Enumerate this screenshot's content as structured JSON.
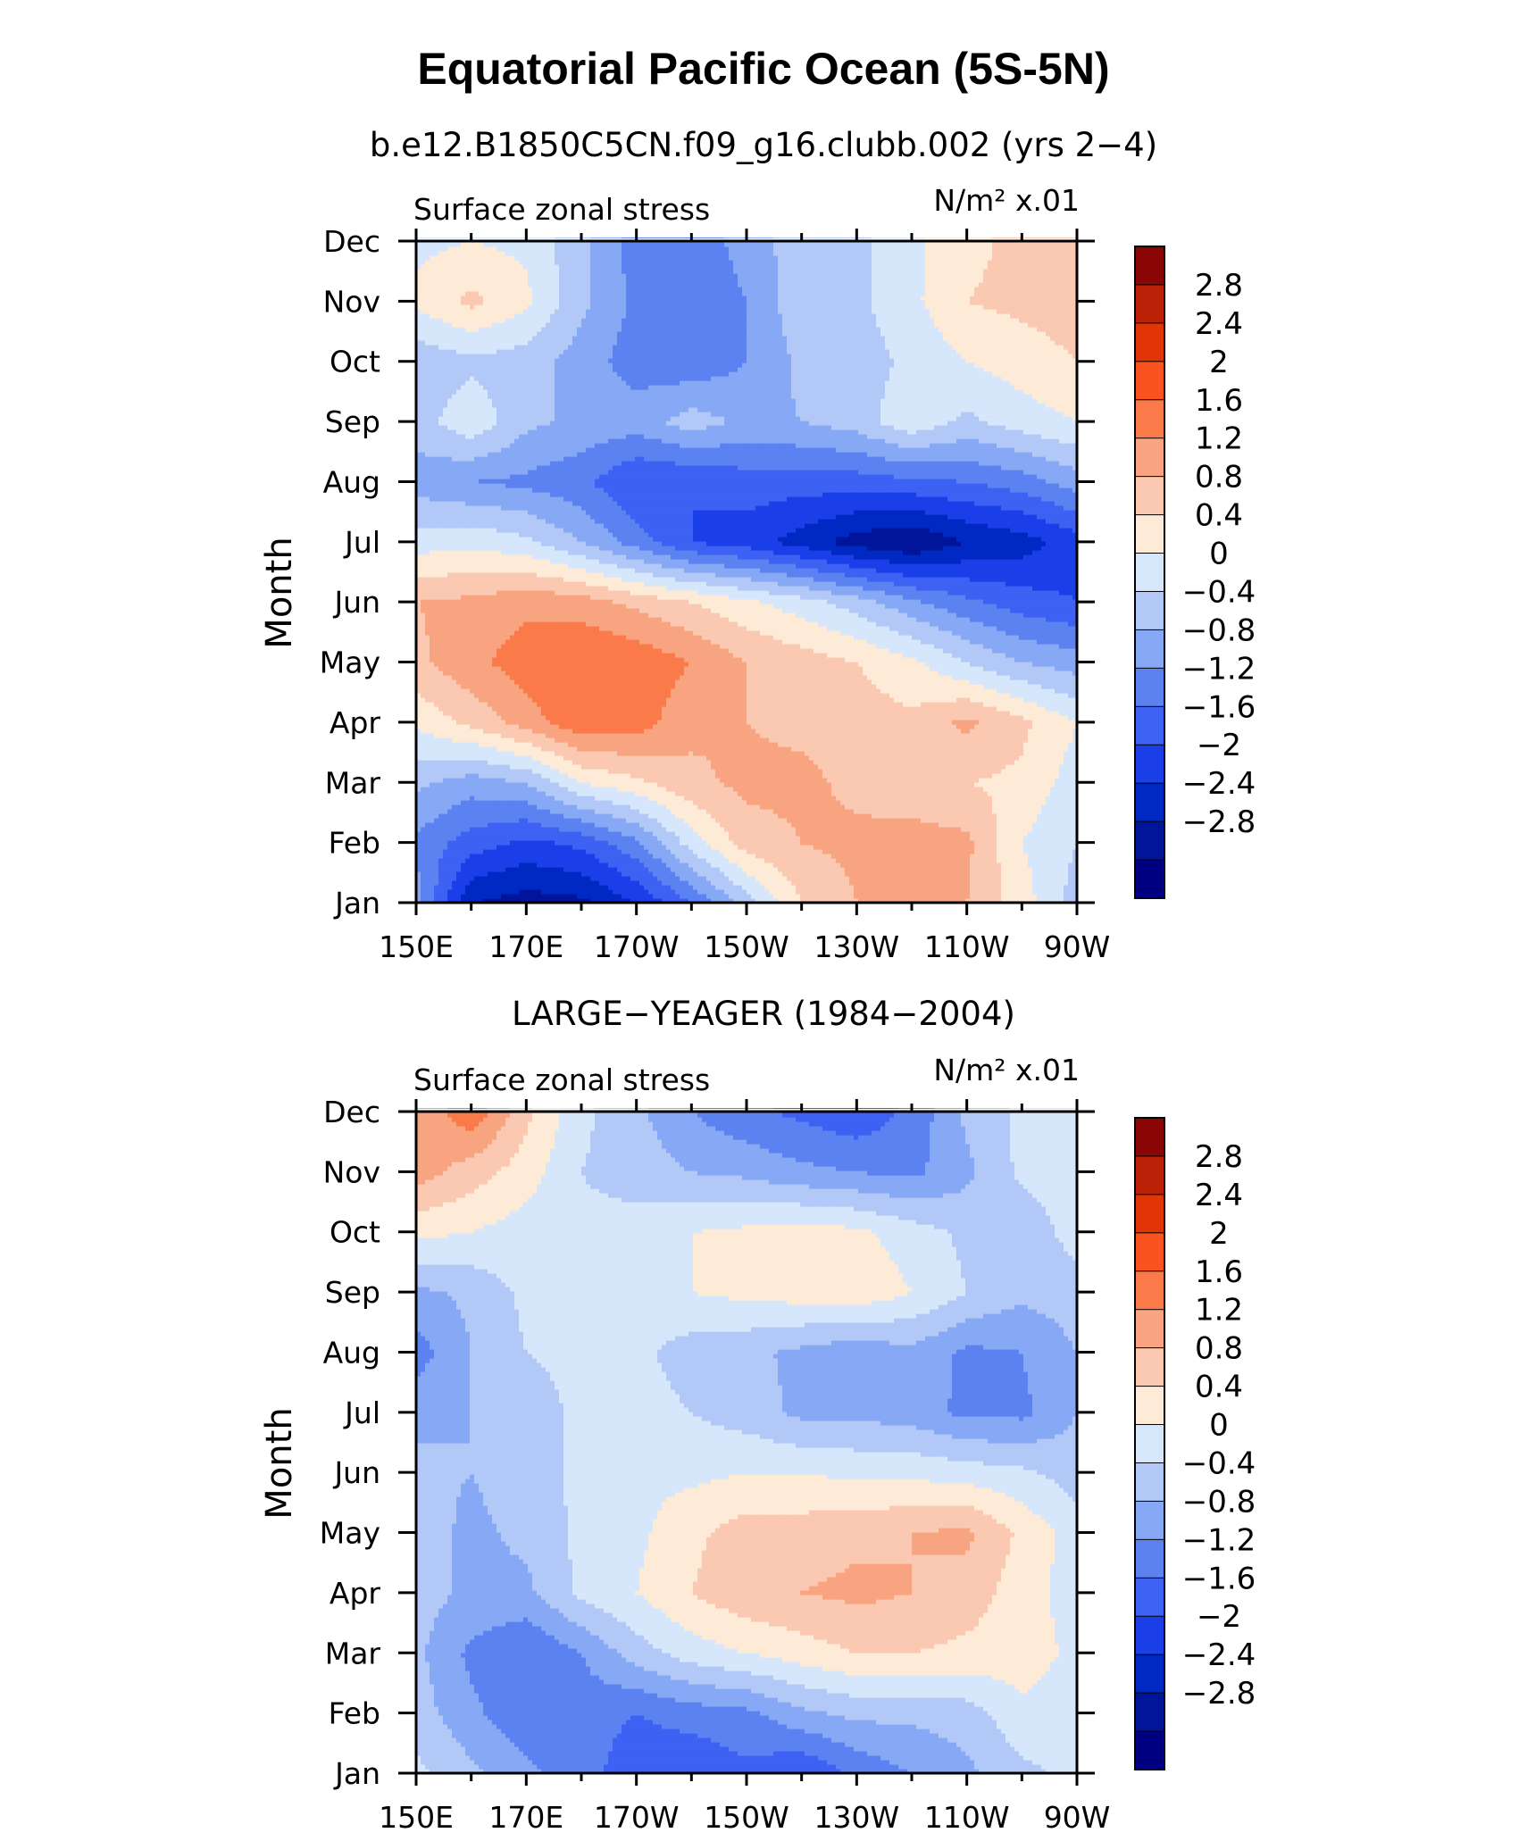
{
  "figure": {
    "title": "Equatorial Pacific Ocean (5S-5N)"
  },
  "colorbar": {
    "colors": [
      "#000080",
      "#00159a",
      "#0028c2",
      "#1a3fe8",
      "#3d61f2",
      "#5b82f0",
      "#87a8f5",
      "#b2c9f8",
      "#d6e6fb",
      "#fdebd8",
      "#fbc9b1",
      "#f9a481",
      "#fa7a4a",
      "#f9541f",
      "#e23506",
      "#bb2106",
      "#8a0606"
    ],
    "labels": [
      "2.8",
      "2.4",
      "2",
      "1.6",
      "1.2",
      "0.8",
      "0.4",
      "0",
      "−0.4",
      "−0.8",
      "−1.2",
      "−1.6",
      "−2",
      "−2.4",
      "−2.8"
    ]
  },
  "chart_data": [
    {
      "type": "heatmap",
      "title": "b.e12.B1850C5CN.f09_g16.clubb.002 (yrs 2−4)",
      "left_label": "Surface zonal stress",
      "units": "N/m² x.01",
      "xlabel": "",
      "ylabel": "Month",
      "xticks": [
        "150E",
        "170E",
        "170W",
        "150W",
        "130W",
        "110W",
        "90W"
      ],
      "yticks": [
        "Jan",
        "Feb",
        "Mar",
        "Apr",
        "May",
        "Jun",
        "Jul",
        "Aug",
        "Sep",
        "Oct",
        "Nov",
        "Dec"
      ],
      "xlim_deg_east": [
        150,
        270
      ],
      "levels": [
        -2.8,
        -2.4,
        -2.0,
        -1.6,
        -1.2,
        -0.8,
        -0.4,
        0,
        0.4,
        0.8,
        1.2,
        1.6,
        2.0,
        2.4,
        2.8
      ],
      "x_deg_east": [
        150,
        160,
        170,
        180,
        190,
        200,
        210,
        220,
        230,
        240,
        250,
        260,
        270
      ],
      "months": [
        "Jan",
        "Feb",
        "Mar",
        "Apr",
        "May",
        "Jun",
        "Jul",
        "Aug",
        "Sep",
        "Oct",
        "Nov",
        "Dec"
      ],
      "z": [
        [
          -0.6,
          -2.4,
          -2.6,
          -2.5,
          -2.0,
          -1.2,
          -0.2,
          0.8,
          1.2,
          1.3,
          1.2,
          0.6,
          -0.2
        ],
        [
          -0.9,
          -1.4,
          -1.7,
          -1.5,
          -0.9,
          0.2,
          1.0,
          1.2,
          1.3,
          1.4,
          1.3,
          0.4,
          0.0
        ],
        [
          -0.3,
          -0.6,
          -0.4,
          0.4,
          0.7,
          1.1,
          1.3,
          1.3,
          1.1,
          0.9,
          0.8,
          0.7,
          0.2
        ],
        [
          0.5,
          0.9,
          1.4,
          1.9,
          1.8,
          1.3,
          1.2,
          1.1,
          1.0,
          0.9,
          1.3,
          0.9,
          0.4
        ],
        [
          1.1,
          1.5,
          1.8,
          2.0,
          1.9,
          1.6,
          1.2,
          1.0,
          0.8,
          0.5,
          0.0,
          -0.4,
          -0.6
        ],
        [
          1.2,
          1.3,
          1.5,
          1.4,
          1.1,
          0.8,
          0.5,
          0.2,
          -0.2,
          -0.7,
          -1.1,
          -1.4,
          -1.6
        ],
        [
          0.2,
          0.3,
          0.1,
          -0.4,
          -1.0,
          -1.6,
          -1.8,
          -2.2,
          -2.6,
          -2.8,
          -2.4,
          -2.2,
          -1.8
        ],
        [
          -0.6,
          -0.8,
          -0.9,
          -1.1,
          -1.6,
          -1.6,
          -1.4,
          -1.4,
          -1.4,
          -1.3,
          -1.2,
          -1.0,
          -0.6
        ],
        [
          -0.2,
          0.3,
          -0.3,
          -0.5,
          -0.6,
          -0.2,
          -0.5,
          -0.4,
          -0.2,
          0.3,
          -0.1,
          0.2,
          0.4
        ],
        [
          -0.3,
          -0.1,
          -0.2,
          -0.6,
          -1.0,
          -1.1,
          -0.8,
          -0.3,
          -0.2,
          0.1,
          0.4,
          0.6,
          0.8
        ],
        [
          0.5,
          0.9,
          0.5,
          -0.3,
          -0.9,
          -1.2,
          -0.8,
          -0.1,
          -0.1,
          0.3,
          0.8,
          0.9,
          1.0
        ],
        [
          0.3,
          0.4,
          0.3,
          -0.3,
          -1.0,
          -1.1,
          -0.6,
          -0.2,
          -0.1,
          0.3,
          0.7,
          0.9,
          0.8
        ]
      ]
    },
    {
      "type": "heatmap",
      "title": "LARGE−YEAGER (1984−2004)",
      "left_label": "Surface zonal stress",
      "units": "N/m² x.01",
      "xlabel": "",
      "ylabel": "Month",
      "xticks": [
        "150E",
        "170E",
        "170W",
        "150W",
        "130W",
        "110W",
        "90W"
      ],
      "yticks": [
        "Jan",
        "Feb",
        "Mar",
        "Apr",
        "May",
        "Jun",
        "Jul",
        "Aug",
        "Sep",
        "Oct",
        "Nov",
        "Dec"
      ],
      "xlim_deg_east": [
        150,
        270
      ],
      "levels": [
        -2.8,
        -2.4,
        -2.0,
        -1.6,
        -1.2,
        -0.8,
        -0.4,
        0,
        0.4,
        0.8,
        1.2,
        1.6,
        2.0,
        2.4,
        2.8
      ],
      "x_deg_east": [
        150,
        160,
        170,
        180,
        190,
        200,
        210,
        220,
        230,
        240,
        250,
        260,
        270
      ],
      "months": [
        "Jan",
        "Feb",
        "Mar",
        "Apr",
        "May",
        "Jun",
        "Jul",
        "Aug",
        "Sep",
        "Oct",
        "Nov",
        "Dec"
      ],
      "z": [
        [
          0.1,
          -0.3,
          -0.7,
          -1.0,
          -1.5,
          -1.6,
          -1.3,
          -1.6,
          -1.1,
          -0.8,
          -0.5,
          -0.1,
          0.1
        ],
        [
          -0.2,
          -0.7,
          -1.1,
          -1.0,
          -1.2,
          -1.0,
          -0.9,
          -0.5,
          -0.3,
          -0.3,
          -0.2,
          0.3,
          0.2
        ],
        [
          -0.3,
          -0.9,
          -1.2,
          -0.8,
          -0.2,
          0.2,
          0.4,
          0.6,
          0.8,
          0.8,
          0.7,
          0.6,
          0.3
        ],
        [
          -0.2,
          -0.5,
          -0.5,
          0.1,
          0.4,
          0.8,
          1.1,
          1.2,
          1.3,
          1.2,
          1.0,
          0.6,
          0.2
        ],
        [
          -0.2,
          -0.5,
          -0.3,
          0.1,
          0.3,
          0.7,
          1.0,
          1.0,
          1.1,
          1.2,
          1.3,
          0.7,
          0.2
        ],
        [
          -0.3,
          -0.4,
          -0.2,
          0.1,
          0.3,
          0.3,
          0.4,
          0.4,
          0.3,
          0.3,
          0.2,
          0.1,
          -0.2
        ],
        [
          -0.5,
          -0.4,
          -0.2,
          0.1,
          0.2,
          0.0,
          -0.2,
          -0.5,
          -0.5,
          -0.6,
          -0.9,
          -0.9,
          -0.4
        ],
        [
          -1.0,
          -0.4,
          0.0,
          0.1,
          0.1,
          -0.2,
          -0.3,
          -0.5,
          -0.7,
          -0.5,
          -0.9,
          -0.8,
          -0.4
        ],
        [
          -0.5,
          -0.3,
          0.1,
          0.2,
          0.3,
          0.4,
          0.5,
          0.6,
          0.7,
          0.4,
          0.0,
          -0.3,
          -0.2
        ],
        [
          0.5,
          0.4,
          0.2,
          0.1,
          0.2,
          0.4,
          0.5,
          0.6,
          0.5,
          0.2,
          -0.1,
          -0.3,
          0.2
        ],
        [
          1.4,
          1.0,
          0.6,
          0.0,
          -0.2,
          -0.4,
          -0.5,
          -0.7,
          -0.8,
          -0.9,
          -0.5,
          0.1,
          0.2
        ],
        [
          1.2,
          1.9,
          0.9,
          0.1,
          -0.3,
          -0.8,
          -1.1,
          -1.3,
          -1.5,
          -1.1,
          -0.3,
          0.1,
          0.1
        ]
      ]
    }
  ]
}
